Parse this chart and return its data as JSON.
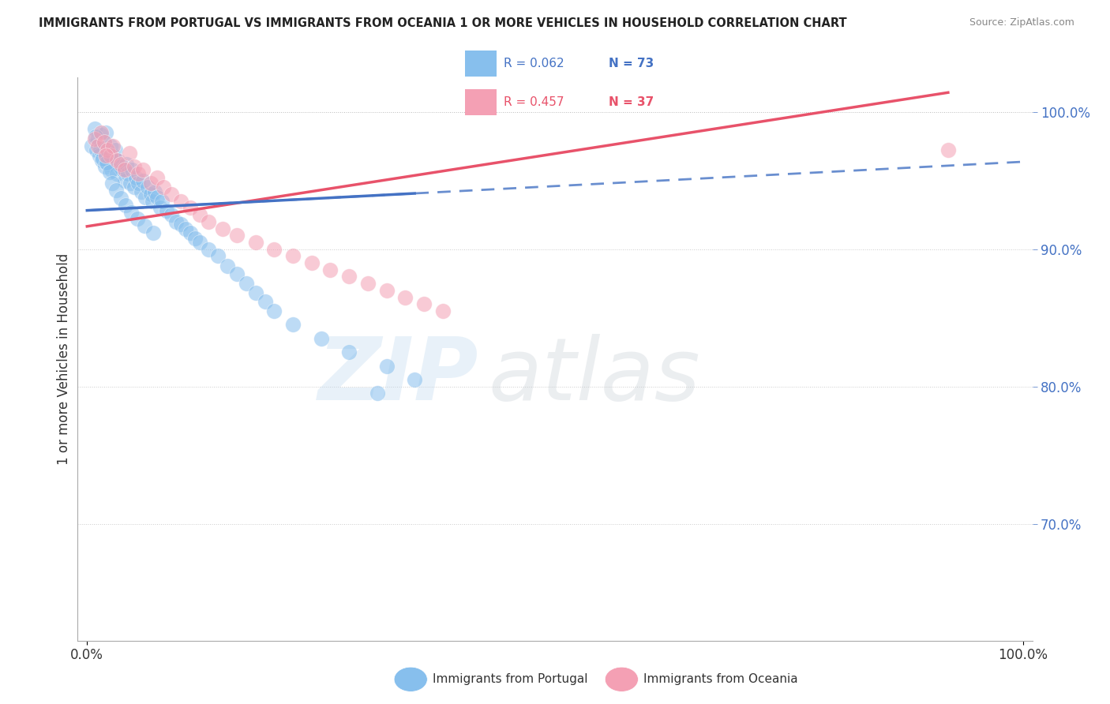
{
  "title": "IMMIGRANTS FROM PORTUGAL VS IMMIGRANTS FROM OCEANIA 1 OR MORE VEHICLES IN HOUSEHOLD CORRELATION CHART",
  "source": "Source: ZipAtlas.com",
  "ylabel": "1 or more Vehicles in Household",
  "color_portugal": "#87BFED",
  "color_oceania": "#F4A0B4",
  "color_portugal_line": "#4472C4",
  "color_oceania_line": "#E8526A",
  "legend_R1": "R = 0.062",
  "legend_N1": "N = 73",
  "legend_R2": "R = 0.457",
  "legend_N2": "N = 37",
  "legend_color1": "#4472C4",
  "legend_color2": "#E8526A",
  "right_tick_color": "#4472C4",
  "right_yticks": [
    1.0,
    0.9,
    0.8,
    0.7
  ],
  "right_yticklabels": [
    "100.0%",
    "90.0%",
    "80.0%",
    "70.0%"
  ],
  "xticks": [
    0.0,
    1.0
  ],
  "xticklabels": [
    "0.0%",
    "100.0%"
  ],
  "bottom_label1": "Immigrants from Portugal",
  "bottom_label2": "Immigrants from Oceania",
  "watermark_zip": "ZIP",
  "watermark_atlas": "atlas",
  "background": "#FFFFFF",
  "xlim": [
    -0.01,
    1.01
  ],
  "ylim": [
    0.615,
    1.025
  ],
  "portugal_x": [
    0.005,
    0.008,
    0.01,
    0.012,
    0.013,
    0.015,
    0.016,
    0.018,
    0.019,
    0.02,
    0.022,
    0.023,
    0.025,
    0.026,
    0.028,
    0.03,
    0.032,
    0.033,
    0.035,
    0.038,
    0.04,
    0.042,
    0.044,
    0.046,
    0.048,
    0.05,
    0.052,
    0.055,
    0.058,
    0.06,
    0.062,
    0.065,
    0.068,
    0.07,
    0.072,
    0.075,
    0.078,
    0.08,
    0.085,
    0.09,
    0.095,
    0.1,
    0.105,
    0.11,
    0.115,
    0.12,
    0.13,
    0.14,
    0.15,
    0.16,
    0.17,
    0.18,
    0.19,
    0.2,
    0.22,
    0.25,
    0.28,
    0.32,
    0.35,
    0.009,
    0.014,
    0.017,
    0.021,
    0.024,
    0.027,
    0.031,
    0.036,
    0.041,
    0.047,
    0.054,
    0.061,
    0.071,
    0.31
  ],
  "portugal_y": [
    0.975,
    0.988,
    0.972,
    0.98,
    0.968,
    0.983,
    0.965,
    0.978,
    0.96,
    0.985,
    0.962,
    0.97,
    0.975,
    0.958,
    0.968,
    0.972,
    0.955,
    0.965,
    0.96,
    0.958,
    0.95,
    0.962,
    0.955,
    0.948,
    0.958,
    0.945,
    0.952,
    0.948,
    0.942,
    0.95,
    0.938,
    0.945,
    0.94,
    0.935,
    0.942,
    0.938,
    0.93,
    0.935,
    0.928,
    0.925,
    0.92,
    0.918,
    0.915,
    0.912,
    0.908,
    0.905,
    0.9,
    0.895,
    0.888,
    0.882,
    0.875,
    0.868,
    0.862,
    0.855,
    0.845,
    0.835,
    0.825,
    0.815,
    0.805,
    0.982,
    0.973,
    0.966,
    0.963,
    0.956,
    0.948,
    0.943,
    0.937,
    0.932,
    0.927,
    0.922,
    0.917,
    0.912,
    0.795
  ],
  "oceania_x": [
    0.008,
    0.012,
    0.015,
    0.018,
    0.022,
    0.025,
    0.028,
    0.032,
    0.036,
    0.04,
    0.045,
    0.05,
    0.055,
    0.06,
    0.068,
    0.075,
    0.082,
    0.09,
    0.1,
    0.11,
    0.12,
    0.13,
    0.145,
    0.16,
    0.18,
    0.2,
    0.22,
    0.24,
    0.26,
    0.28,
    0.3,
    0.32,
    0.34,
    0.36,
    0.38,
    0.02,
    0.92
  ],
  "oceania_y": [
    0.98,
    0.975,
    0.985,
    0.978,
    0.972,
    0.968,
    0.975,
    0.965,
    0.962,
    0.958,
    0.97,
    0.96,
    0.955,
    0.958,
    0.948,
    0.952,
    0.945,
    0.94,
    0.935,
    0.93,
    0.925,
    0.92,
    0.915,
    0.91,
    0.905,
    0.9,
    0.895,
    0.89,
    0.885,
    0.88,
    0.875,
    0.87,
    0.865,
    0.86,
    0.855,
    0.968,
    0.972
  ]
}
